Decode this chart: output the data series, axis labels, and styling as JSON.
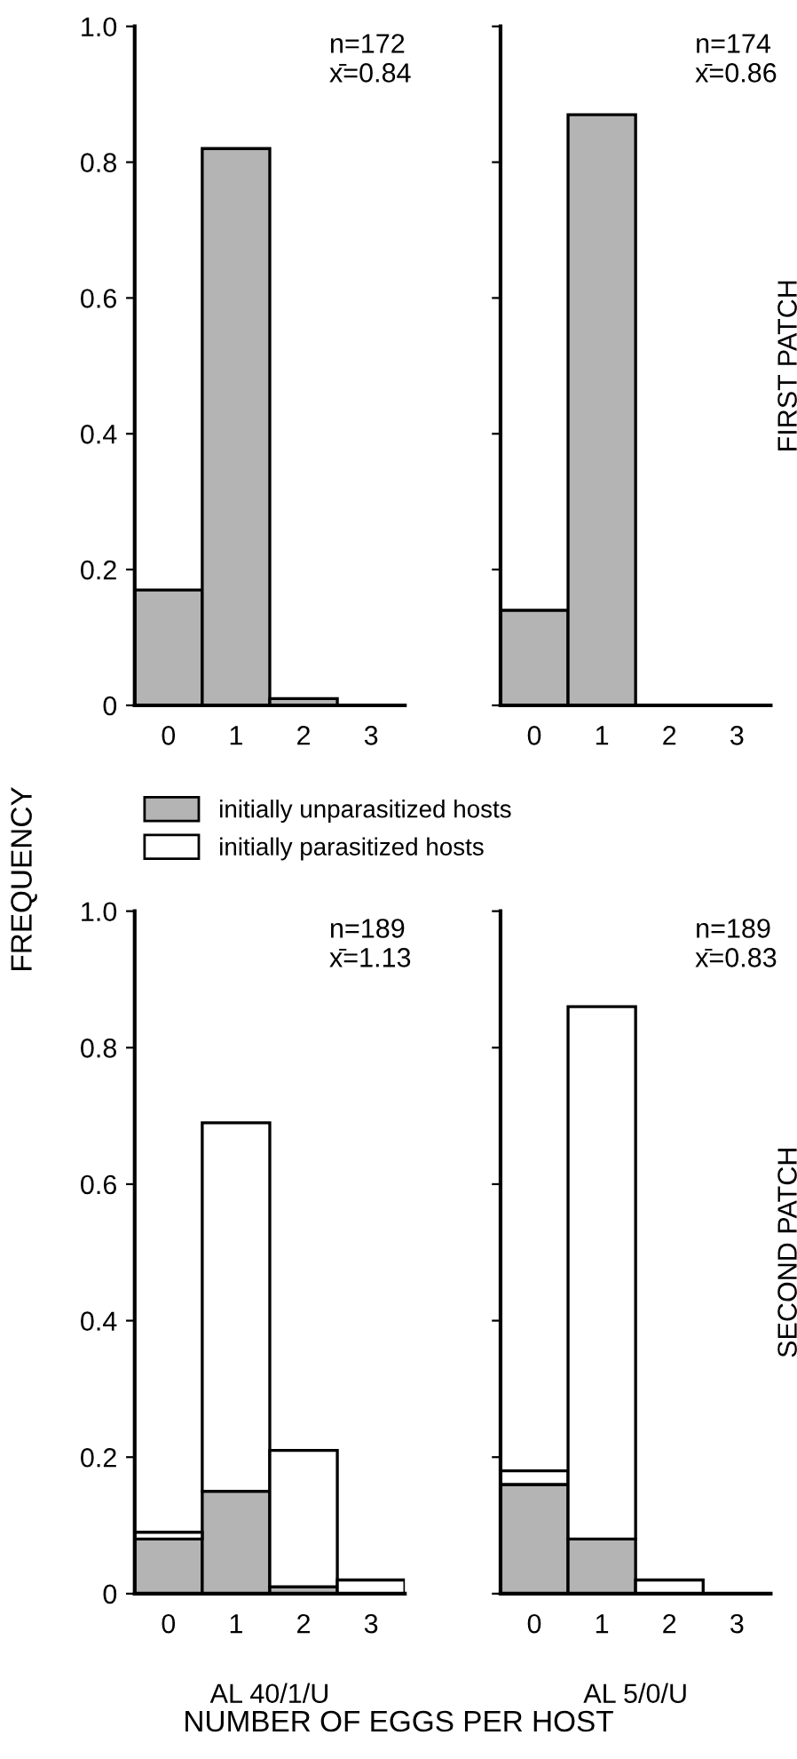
{
  "chart_data": [
    {
      "type": "bar",
      "categories": [
        "0",
        "1",
        "2",
        "3"
      ],
      "ylabel": "FREQUENCY",
      "ylim": [
        0,
        1
      ],
      "yticks": [
        0,
        0.2,
        0.4,
        0.6,
        0.8,
        {
          "value": 1,
          "label": "1.0"
        }
      ],
      "annotations": [
        "n=172\nx̄=0.84"
      ],
      "series": [
        {
          "color": "#b4b4b4",
          "values": [
            0.17,
            0.82,
            0.01,
            null
          ]
        }
      ]
    },
    {
      "type": "bar",
      "categories": [
        "0",
        "1",
        "2",
        "3"
      ],
      "y2label": "FIRST PATCH",
      "ylim": [
        0,
        1
      ],
      "yticks": [
        0,
        0.2,
        0.4,
        0.6,
        0.8,
        1
      ],
      "tick_labels": "x",
      "annotations": [
        "n=174\nx̄=0.86"
      ],
      "series": [
        {
          "color": "#b4b4b4",
          "values": [
            0.14,
            0.87,
            null,
            null
          ]
        }
      ]
    },
    {
      "type": "bar",
      "stacked": true,
      "categories": [
        "0",
        "1",
        "2",
        "3"
      ],
      "xlabel": "AL 40/1/U",
      "ylim": [
        0,
        1
      ],
      "yticks": [
        0,
        0.2,
        0.4,
        0.6,
        0.8,
        {
          "value": 1,
          "label": "1.0"
        }
      ],
      "annotations": [
        "n=189\nx̄=1.13",
        "NUMBER OF EGGS PER HOST"
      ],
      "legend": "top",
      "series": [
        {
          "name": "initially unparasitized hosts",
          "color": "#b4b4b4",
          "values": [
            0.08,
            0.15,
            0.01,
            null
          ]
        },
        {
          "name": "initially parasitized hosts",
          "color": "#ffffff",
          "values": [
            0.01,
            0.54,
            0.2,
            0.02
          ]
        }
      ]
    },
    {
      "type": "bar",
      "stacked": true,
      "categories": [
        "0",
        "1",
        "2",
        "3"
      ],
      "xlabel": "AL 5/0/U",
      "y2label": "SECOND PATCH",
      "ylim": [
        0,
        1
      ],
      "yticks": [
        0,
        0.2,
        0.4,
        0.6,
        0.8,
        1
      ],
      "tick_labels": "x",
      "annotations": [
        "n=189\nx̄=0.83"
      ],
      "series": [
        {
          "color": "#b4b4b4",
          "values": [
            0.16,
            0.08,
            null,
            null
          ]
        },
        {
          "color": "#ffffff",
          "values": [
            0.02,
            0.78,
            0.02,
            null
          ]
        }
      ]
    }
  ]
}
